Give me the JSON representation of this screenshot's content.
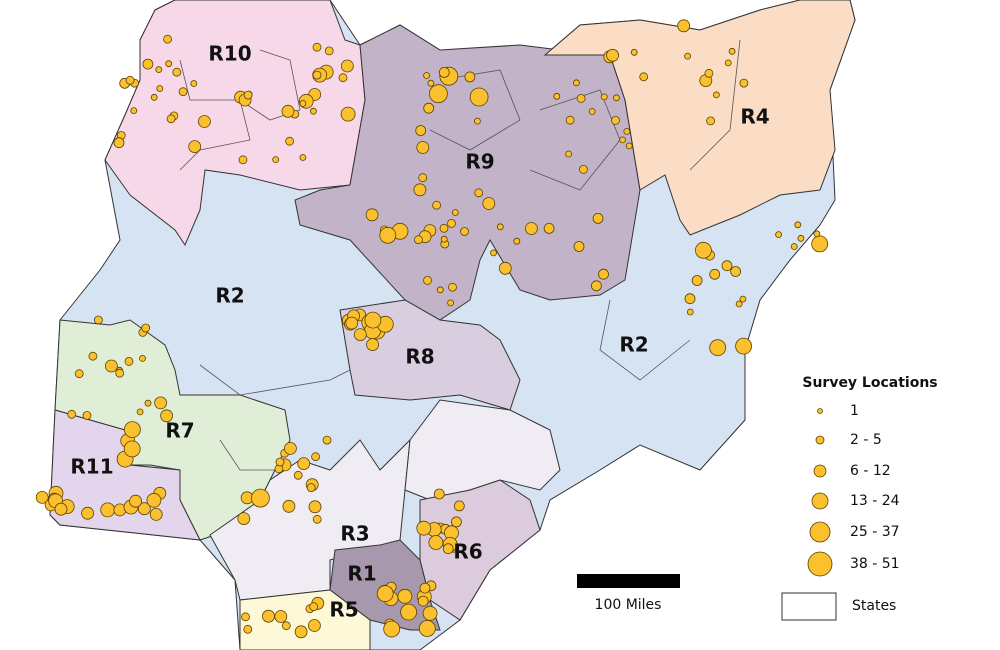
{
  "map": {
    "regions": [
      {
        "label": "R10"
      },
      {
        "label": "R9"
      },
      {
        "label": "R4"
      },
      {
        "label": "R2"
      },
      {
        "label": "R2"
      },
      {
        "label": "R8"
      },
      {
        "label": "R7"
      },
      {
        "label": "R11"
      },
      {
        "label": "R3"
      },
      {
        "label": "R1"
      },
      {
        "label": "R6"
      },
      {
        "label": "R5"
      }
    ],
    "scale_bar": "100 Miles",
    "legend": {
      "title": "Survey Locations",
      "entries": [
        "1",
        "2 - 5",
        "6 - 12",
        "13 - 24",
        "25 - 37",
        "38 - 51"
      ],
      "states": "States"
    }
  }
}
